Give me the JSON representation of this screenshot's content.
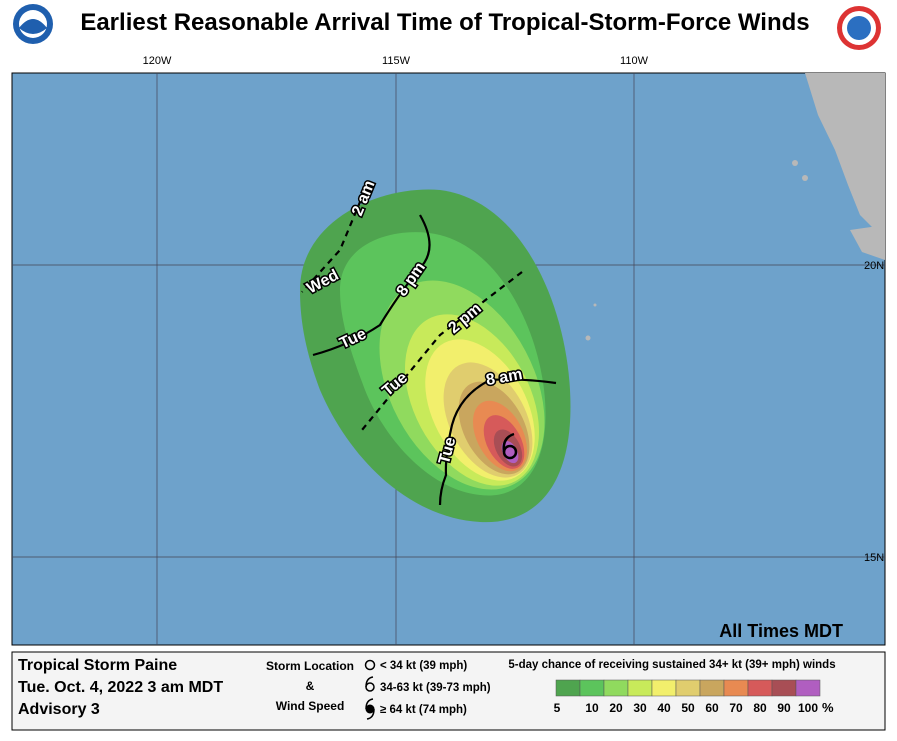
{
  "header": {
    "title": "Earliest Reasonable Arrival Time of Tropical-Storm-Force Winds"
  },
  "map": {
    "longitudes": [
      "120W",
      "115W",
      "110W"
    ],
    "latitudes": [
      "20N",
      "15N"
    ],
    "note": "All Times MDT",
    "contours": [
      {
        "time": "2 am",
        "day": "Wed"
      },
      {
        "time": "8 pm",
        "day": "Tue"
      },
      {
        "time": "2 pm",
        "day": "Tue"
      },
      {
        "time": "8 am",
        "day": "Tue"
      }
    ]
  },
  "legend": {
    "storm_name": "Tropical Storm Paine",
    "issued": "Tue. Oct. 4, 2022  3 am MDT",
    "advisory": "Advisory 3",
    "storm_location": "Storm Location",
    "amp": "&",
    "wind_speed": "Wind Speed",
    "symbols": [
      "< 34 kt (39 mph)",
      "34-63 kt (39-73 mph)",
      "≥ 64 kt (74 mph)"
    ],
    "scale_title": "5-day chance of receiving sustained 34+ kt (39+ mph) winds",
    "scale": [
      5,
      10,
      20,
      30,
      40,
      50,
      60,
      70,
      80,
      90,
      100
    ],
    "unit": "%",
    "colors": [
      "#4fa44f",
      "#5cc45c",
      "#90da5e",
      "#c8ea5a",
      "#f2ef6c",
      "#e0cd6e",
      "#c9a65e",
      "#e88a52",
      "#d65a5a",
      "#a84e55",
      "#b05ec0"
    ]
  }
}
